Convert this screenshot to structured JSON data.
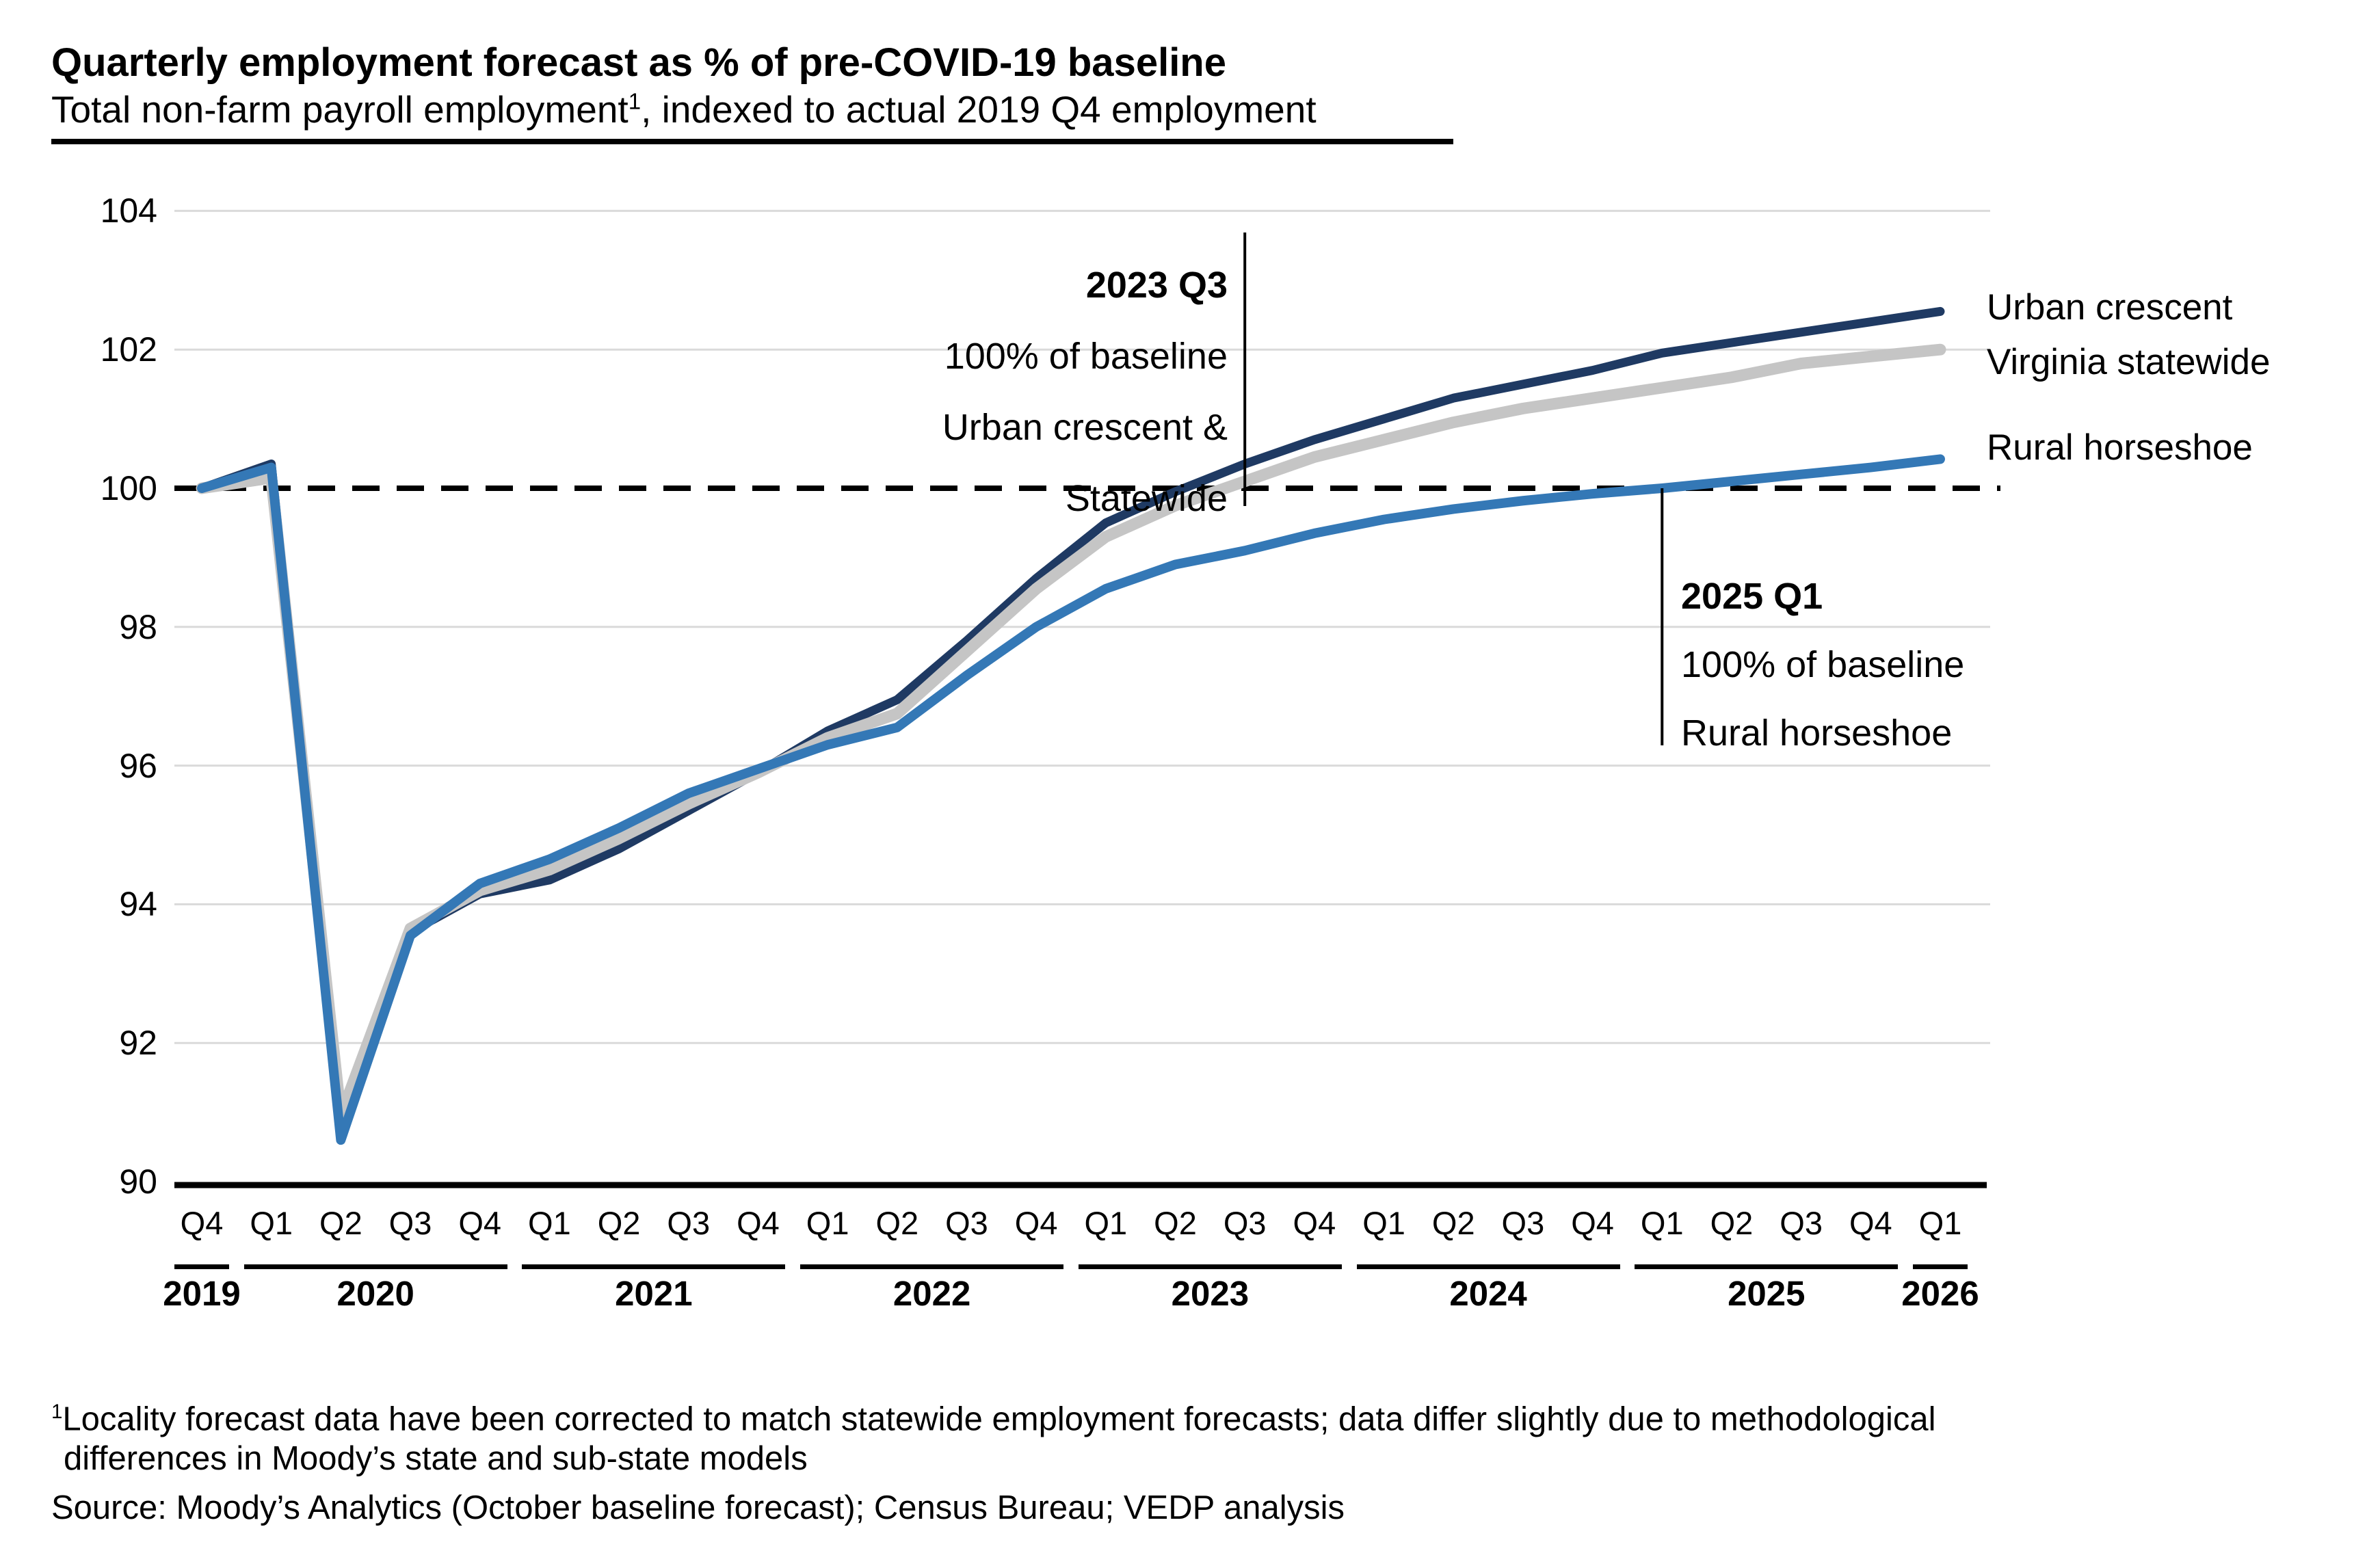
{
  "header": {
    "title": "Quarterly employment forecast as % of pre-COVID-19 baseline",
    "subtitle_part1": "Total non-farm payroll employment",
    "subtitle_sup": "1",
    "subtitle_part2": ", indexed to actual 2019 Q4 employment"
  },
  "chart_data": {
    "type": "line",
    "title": "Quarterly employment forecast as % of pre-COVID-19 baseline",
    "xlabel": "",
    "ylabel": "",
    "ylim": [
      90,
      104
    ],
    "y_ticks": [
      104,
      102,
      100,
      98,
      96,
      94,
      92,
      90
    ],
    "baseline_value": 100,
    "grid": "horizontal",
    "legend_position": "right-of-line-ends",
    "x_quarters": [
      "Q4",
      "Q1",
      "Q2",
      "Q3",
      "Q4",
      "Q1",
      "Q2",
      "Q3",
      "Q4",
      "Q1",
      "Q2",
      "Q3",
      "Q4",
      "Q1",
      "Q2",
      "Q3",
      "Q4",
      "Q1",
      "Q2",
      "Q3",
      "Q4",
      "Q1",
      "Q2",
      "Q3",
      "Q4",
      "Q1"
    ],
    "year_groups": [
      {
        "label": "2019",
        "start": 0,
        "end": 0
      },
      {
        "label": "2020",
        "start": 1,
        "end": 4
      },
      {
        "label": "2021",
        "start": 5,
        "end": 8
      },
      {
        "label": "2022",
        "start": 9,
        "end": 12
      },
      {
        "label": "2023",
        "start": 13,
        "end": 16
      },
      {
        "label": "2024",
        "start": 17,
        "end": 20
      },
      {
        "label": "2025",
        "start": 21,
        "end": 24
      },
      {
        "label": "2026",
        "start": 25,
        "end": 25
      }
    ],
    "series": [
      {
        "name": "Urban crescent",
        "color": "#1F3A63",
        "values": [
          100.0,
          100.35,
          90.7,
          93.6,
          94.15,
          94.35,
          94.8,
          95.35,
          95.9,
          96.5,
          96.95,
          97.8,
          98.7,
          99.5,
          99.95,
          100.35,
          100.7,
          101.0,
          101.3,
          101.5,
          101.7,
          101.95,
          102.1,
          102.25,
          102.4,
          102.55
        ]
      },
      {
        "name": "Virginia statewide",
        "color": "#C5C5C5",
        "values": [
          100.0,
          100.15,
          90.95,
          93.65,
          94.2,
          94.5,
          94.95,
          95.45,
          95.9,
          96.4,
          96.75,
          97.65,
          98.55,
          99.3,
          99.75,
          100.1,
          100.45,
          100.7,
          100.95,
          101.15,
          101.3,
          101.45,
          101.6,
          101.8,
          101.9,
          102.0
        ]
      },
      {
        "name": "Rural horseshoe",
        "color": "#3478B6",
        "values": [
          100.0,
          100.3,
          90.6,
          93.55,
          94.3,
          94.65,
          95.1,
          95.6,
          95.95,
          96.3,
          96.55,
          97.3,
          98.0,
          98.55,
          98.9,
          99.1,
          99.35,
          99.55,
          99.7,
          99.82,
          99.92,
          100.0,
          100.1,
          100.2,
          100.3,
          100.42
        ]
      }
    ],
    "legend": [
      "Urban crescent",
      "Virginia statewide",
      "Rural horseshoe"
    ],
    "annotations": [
      {
        "quarter_index": 15,
        "align": "right",
        "lines": [
          "2023 Q3",
          "100% of baseline",
          "Urban crescent &",
          "Statewide"
        ]
      },
      {
        "quarter_index": 21,
        "align": "left",
        "lines": [
          "2025 Q1",
          "100% of baseline",
          "Rural horseshoe"
        ]
      }
    ],
    "colors": {
      "gridline": "#DADADA",
      "axis": "#000000",
      "baseline_dash": "#000000"
    }
  },
  "footnote": {
    "sup": "1",
    "line1": "Locality forecast data have been corrected to match statewide employment forecasts; data differ slightly due to methodological",
    "line2": "differences in Moody’s state and sub-state models",
    "source": "Source: Moody’s Analytics (October baseline forecast); Census Bureau; VEDP analysis"
  }
}
